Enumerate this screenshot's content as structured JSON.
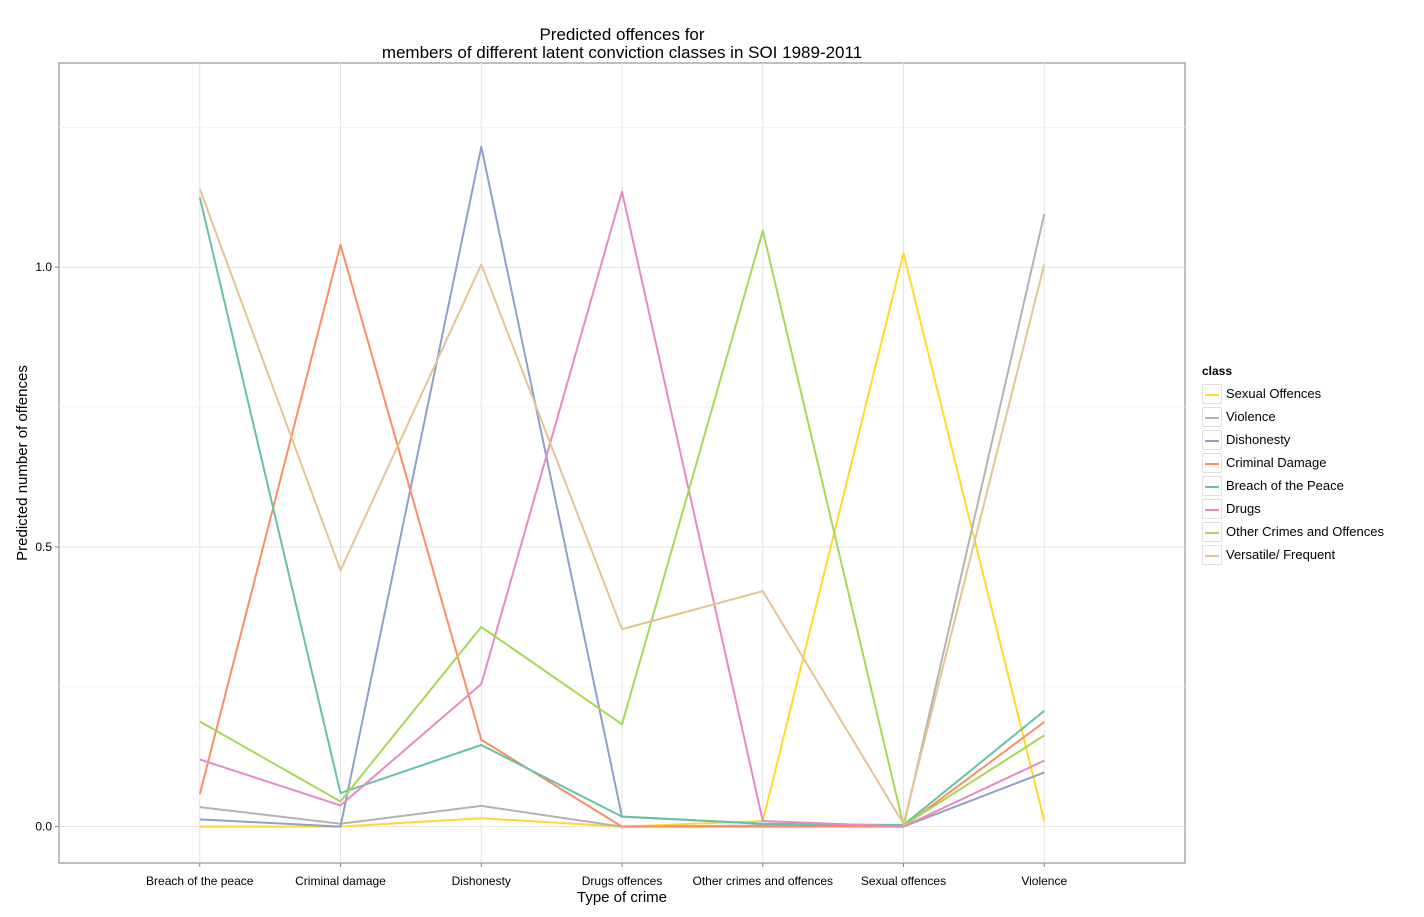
{
  "chart_data": {
    "type": "line",
    "title": "Predicted offences for",
    "subtitle": "members of different latent conviction classes in SOI 1989-2011",
    "xlabel": "Type of crime",
    "ylabel": "Predicted number of offences",
    "categories": [
      "Breach of the peace",
      "Criminal damage",
      "Dishonesty",
      "Drugs offences",
      "Other crimes and offences",
      "Sexual offences",
      "Violence"
    ],
    "yticks": [
      0.0,
      0.5,
      1.0
    ],
    "ytick_labels": [
      "0.0",
      "0.5",
      "1.0"
    ],
    "ylim": [
      -0.065,
      1.365
    ],
    "grid": true,
    "legend_title": "class",
    "legend_position": "right",
    "series": [
      {
        "name": "Sexual Offences",
        "color": "#FFD92F",
        "values": [
          0.0,
          0.0,
          0.015,
          0.0,
          0.01,
          1.025,
          0.01
        ]
      },
      {
        "name": "Violence",
        "color": "#B3B3B3",
        "values": [
          0.035,
          0.005,
          0.037,
          0.0,
          0.002,
          0.0,
          1.095
        ]
      },
      {
        "name": "Dishonesty",
        "color": "#8DA0CB",
        "values": [
          0.013,
          0.0,
          1.215,
          0.018,
          0.005,
          0.0,
          0.097
        ]
      },
      {
        "name": "Criminal Damage",
        "color": "#FC8D62",
        "values": [
          0.058,
          1.04,
          0.155,
          0.0,
          0.0,
          0.0,
          0.187
        ]
      },
      {
        "name": "Breach of the Peace",
        "color": "#66C2A5",
        "values": [
          1.125,
          0.06,
          0.146,
          0.018,
          0.005,
          0.003,
          0.207
        ]
      },
      {
        "name": "Drugs",
        "color": "#E78AC3",
        "values": [
          0.12,
          0.038,
          0.255,
          1.135,
          0.01,
          0.0,
          0.118
        ]
      },
      {
        "name": "Other Crimes and Offences",
        "color": "#A6D854",
        "values": [
          0.188,
          0.045,
          0.357,
          0.183,
          1.065,
          0.002,
          0.163
        ]
      },
      {
        "name": "Versatile/ Frequent",
        "color": "#E5C494",
        "values": [
          1.14,
          0.458,
          1.005,
          0.353,
          0.421,
          0.005,
          1.005
        ]
      }
    ]
  }
}
